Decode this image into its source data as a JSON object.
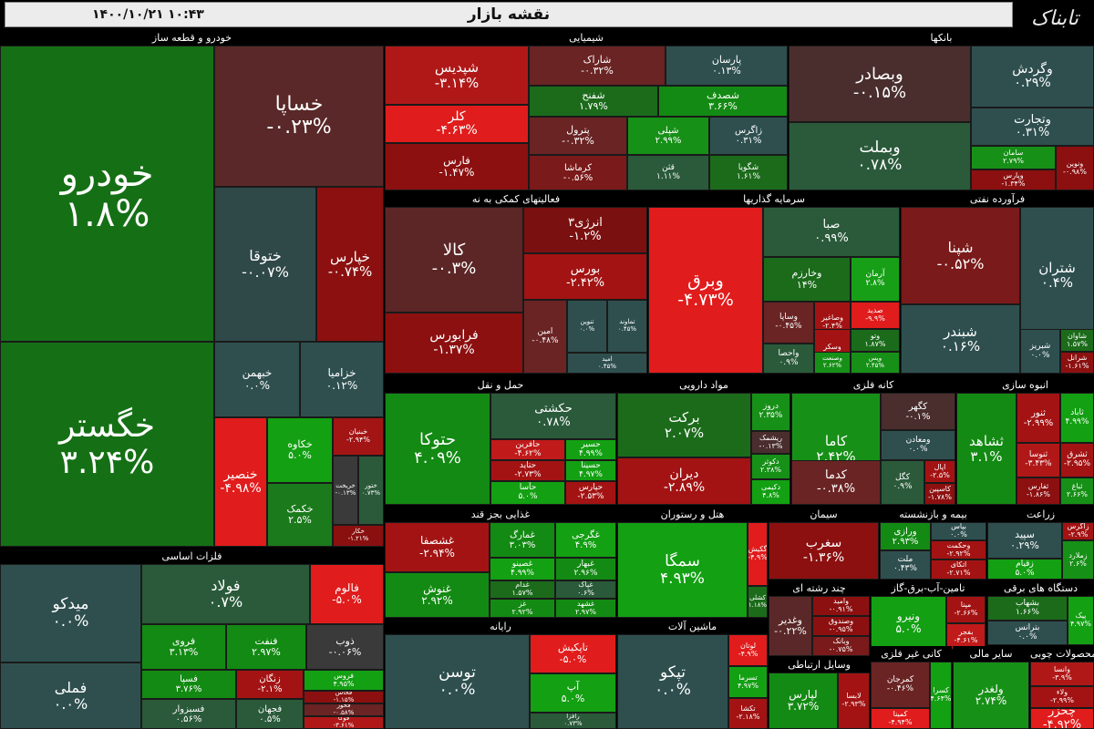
{
  "header": {
    "title": "نقشه بازار",
    "date": "۱۴۰۰/۱۰/۲۱",
    "time": "۱۰:۴۳",
    "logo": "تابناک"
  },
  "palette": {
    "dark_green": "#1b6b1b",
    "green": "#138a13",
    "bright_green": "#17a017",
    "neutral": "#2f4f4f",
    "dark_red": "#7a1010",
    "red": "#a31313",
    "bright_red": "#e11c1c",
    "maroon": "#5c2626"
  },
  "sectors": [
    {
      "title": "خودرو و قطعه ساز",
      "tiles": [
        {
          "name": "خودرو",
          "pct": "۱.۸%",
          "color": "#157015"
        },
        {
          "name": "خگستر",
          "pct": "۳.۲۴%",
          "color": "#157015"
        },
        {
          "name": "خساپا",
          "pct": "-۰.۲۳%",
          "color": "#5a2828"
        },
        {
          "name": "ختوقا",
          "pct": "-۰.۰۷%",
          "color": "#2f4848"
        },
        {
          "name": "خپارس",
          "pct": "-۰.۷۴%",
          "color": "#8c1010"
        },
        {
          "name": "خبهمن",
          "pct": "۰.۰%",
          "color": "#2f4f4f"
        },
        {
          "name": "خزامیا",
          "pct": "۰.۱۲%",
          "color": "#2f4f4f"
        },
        {
          "name": "خنصير",
          "pct": "-۴.۹۸%",
          "color": "#e11c1c"
        },
        {
          "name": "خکاوه",
          "pct": "۵.۰%",
          "color": "#13a013"
        },
        {
          "name": "خکمک",
          "pct": "۲.۵%",
          "color": "#1b7a1b"
        },
        {
          "name": "خبنیان",
          "pct": "-۲.۹۴%",
          "color": "#a31515"
        },
        {
          "name": "خریخت",
          "pct": "-۰.۱۳%",
          "color": "#3a3a3a"
        },
        {
          "name": "ختور",
          "pct": "۰.۷۳%",
          "color": "#2a5a3a"
        },
        {
          "name": "خکار",
          "pct": "-۱.۲۱%",
          "color": "#8a1010"
        }
      ]
    },
    {
      "title": "شیمیایی",
      "tiles": [
        {
          "name": "شپدیس",
          "pct": "-۳.۱۴%",
          "color": "#b01818"
        },
        {
          "name": "شاراک",
          "pct": "-۰.۳۲%",
          "color": "#6a2424"
        },
        {
          "name": "پارسان",
          "pct": "۰.۱۳%",
          "color": "#2f4f4f"
        },
        {
          "name": "شفنح",
          "pct": "۱.۷۹%",
          "color": "#1b6b1b"
        },
        {
          "name": "شصدف",
          "pct": "۳.۶۶%",
          "color": "#138a13"
        },
        {
          "name": "کلر",
          "pct": "-۴.۶۳%",
          "color": "#e11c1c"
        },
        {
          "name": "پترول",
          "pct": "-۰.۳۲%",
          "color": "#6a2424"
        },
        {
          "name": "شپلی",
          "pct": "۲.۹۹%",
          "color": "#179017"
        },
        {
          "name": "زاگرس",
          "pct": "۰.۳۱%",
          "color": "#2f4f4f"
        },
        {
          "name": "فارس",
          "pct": "-۱.۴۷%",
          "color": "#8c1010"
        },
        {
          "name": "کرماشا",
          "pct": "-۰.۵۶%",
          "color": "#7a1a1a"
        },
        {
          "name": "قثن",
          "pct": "۱.۱۱%",
          "color": "#2a5a3a"
        },
        {
          "name": "شگویا",
          "pct": "۱.۶۱%",
          "color": "#1b6b1b"
        }
      ]
    },
    {
      "title": "بانکها",
      "tiles": [
        {
          "name": "وبصادر",
          "pct": "-۰.۱۵%",
          "color": "#4a2e2e"
        },
        {
          "name": "وبملت",
          "pct": "۰.۷۸%",
          "color": "#2a5a3a"
        },
        {
          "name": "وگردش",
          "pct": "۰.۲۹%",
          "color": "#2f4f4f"
        },
        {
          "name": "وتجارت",
          "pct": "۰.۳۱%",
          "color": "#2f4f4f"
        },
        {
          "name": "سامان",
          "pct": "۲.۷۹%",
          "color": "#179017"
        },
        {
          "name": "وپارس",
          "pct": "-۱.۳۴%",
          "color": "#8c1010"
        },
        {
          "name": "ونوین",
          "pct": "-۰.۹۸%",
          "color": "#8c1010"
        }
      ]
    },
    {
      "title": "فعالیتهای کمکی به نه",
      "tiles": [
        {
          "name": "کالا",
          "pct": "-۰.۳%",
          "color": "#5c2626"
        },
        {
          "name": "انرژی۳",
          "pct": "-۱.۲%",
          "color": "#7a1010"
        },
        {
          "name": "بورس",
          "pct": "-۲.۴۲%",
          "color": "#a31313"
        },
        {
          "name": "فرابورس",
          "pct": "-۱.۳۷%",
          "color": "#8c1010"
        },
        {
          "name": "امین",
          "pct": "-۰.۴۸%",
          "color": "#6a2424"
        },
        {
          "name": "تنوین",
          "pct": "۰.۰%",
          "color": "#2f4f4f"
        },
        {
          "name": "تماوند",
          "pct": "۰.۴۵%",
          "color": "#2f4f4f"
        },
        {
          "name": "امید",
          "pct": "۰.۴۵%",
          "color": "#2f4f4f"
        }
      ]
    },
    {
      "title": "سرمایه گذاریها",
      "tiles": [
        {
          "name": "وبرق",
          "pct": "-۴.۷۳%",
          "color": "#e11c1c"
        },
        {
          "name": "صبا",
          "pct": "۰.۹۹%",
          "color": "#2a5a3a"
        },
        {
          "name": "وخارزم",
          "pct": "۱۴%",
          "color": "#1b6b1b"
        },
        {
          "name": "آرمان",
          "pct": "۲.۸%",
          "color": "#17a017"
        },
        {
          "name": "وساپا",
          "pct": "-۰.۴۵%",
          "color": "#6a2424"
        },
        {
          "name": "وصاغیر",
          "pct": "-۲.۴%",
          "color": "#a31313"
        },
        {
          "name": "صدید",
          "pct": "-۹.۹%",
          "color": "#e11c1c"
        },
        {
          "name": "واحصا",
          "pct": "۰.۹%",
          "color": "#2a5a3a"
        },
        {
          "name": "وسکر",
          "pct": "-۲.۵%",
          "color": "#a31313"
        },
        {
          "name": "وتو",
          "pct": "۱.۸۷%",
          "color": "#1b6b1b"
        },
        {
          "name": "وصنعت",
          "pct": "۲.۶۲%",
          "color": "#179017"
        },
        {
          "name": "وپس",
          "pct": "۲.۴۵%",
          "color": "#179017"
        }
      ]
    },
    {
      "title": "فرآورده نفتی",
      "tiles": [
        {
          "name": "شپنا",
          "pct": "-۰.۵۲%",
          "color": "#7a1a1a"
        },
        {
          "name": "شتران",
          "pct": "۰.۴%",
          "color": "#2f4f4f"
        },
        {
          "name": "شبندر",
          "pct": "۰.۱۶%",
          "color": "#2f4f4f"
        },
        {
          "name": "شبریز",
          "pct": "۰.۰%",
          "color": "#2f4f4f"
        },
        {
          "name": "شاوان",
          "pct": "۱.۵۷%",
          "color": "#1b6b1b"
        },
        {
          "name": "شرانل",
          "pct": "-۱.۶۱%",
          "color": "#8c1010"
        }
      ]
    },
    {
      "title": "حمل و نقل",
      "tiles": [
        {
          "name": "حتوکا",
          "pct": "۴.۰۹%",
          "color": "#138a13"
        },
        {
          "name": "حکشتی",
          "pct": "۰.۷۸%",
          "color": "#2a5a3a"
        },
        {
          "name": "حآفرین",
          "pct": "-۴.۶۲%",
          "color": "#c01a1a"
        },
        {
          "name": "حسیر",
          "pct": "۴.۹۹%",
          "color": "#13a013"
        },
        {
          "name": "حتاید",
          "pct": "-۲.۷۳%",
          "color": "#a31313"
        },
        {
          "name": "حسینا",
          "pct": "۴.۹۷%",
          "color": "#13a013"
        },
        {
          "name": "حآسا",
          "pct": "۵.۰%",
          "color": "#13a013"
        },
        {
          "name": "حپارس",
          "pct": "-۲.۵۳%",
          "color": "#a31313"
        }
      ]
    },
    {
      "title": "مواد دارویی",
      "tiles": [
        {
          "name": "برکت",
          "pct": "۲.۰۷%",
          "color": "#1b6b1b"
        },
        {
          "name": "دروز",
          "pct": "۲.۳۵%",
          "color": "#179017"
        },
        {
          "name": "ریشمک",
          "pct": "-۰.۱۳%",
          "color": "#4a2e2e"
        },
        {
          "name": "دیران",
          "pct": "-۲.۸۹%",
          "color": "#a31313"
        },
        {
          "name": "دکوثر",
          "pct": "۲.۳۸%",
          "color": "#179017"
        },
        {
          "name": "دکیمی",
          "pct": "۴.۸%",
          "color": "#13a013"
        }
      ]
    },
    {
      "title": "کانه فلزی",
      "tiles": [
        {
          "name": "کاما",
          "pct": "۲.۴۲%",
          "color": "#179017"
        },
        {
          "name": "کگهر",
          "pct": "-۰.۱%",
          "color": "#4a2e2e"
        },
        {
          "name": "ومعادن",
          "pct": "۰.۰%",
          "color": "#2f4f4f"
        },
        {
          "name": "کدما",
          "pct": "-۰.۳۸%",
          "color": "#6a2424"
        },
        {
          "name": "کگل",
          "pct": "۰.۹%",
          "color": "#2a5a3a"
        },
        {
          "name": "اپال",
          "pct": "-۲.۵%",
          "color": "#a31313"
        },
        {
          "name": "کاسپین",
          "pct": "-۱.۷۸%",
          "color": "#8c1010"
        }
      ]
    },
    {
      "title": "انبوه سازی",
      "tiles": [
        {
          "name": "ثشاهد",
          "pct": "۳.۱%",
          "color": "#138a13"
        },
        {
          "name": "ثنور",
          "pct": "-۲.۹۹%",
          "color": "#a31313"
        },
        {
          "name": "ثاباد",
          "pct": "۴.۹۹%",
          "color": "#13a013"
        },
        {
          "name": "ثنوسا",
          "pct": "-۳.۴۳%",
          "color": "#b01818"
        },
        {
          "name": "ثشرق",
          "pct": "-۲.۹۵%",
          "color": "#a31313"
        },
        {
          "name": "ثفارس",
          "pct": "-۱.۸۶%",
          "color": "#8c1010"
        },
        {
          "name": "ثباغ",
          "pct": "۲.۶۶%",
          "color": "#179017"
        }
      ]
    },
    {
      "title": "فلزات اساسی",
      "tiles": [
        {
          "name": "میدکو",
          "pct": "۰.۰%",
          "color": "#2f4f4f"
        },
        {
          "name": "فملی",
          "pct": "۰.۰%",
          "color": "#2f4f4f"
        },
        {
          "name": "فولاد",
          "pct": "۰.۷%",
          "color": "#2a5a3a"
        },
        {
          "name": "فالوم",
          "pct": "-۵.۰%",
          "color": "#e11c1c"
        },
        {
          "name": "فروی",
          "pct": "۳.۱۳%",
          "color": "#138a13"
        },
        {
          "name": "فنفت",
          "pct": "۲.۹۷%",
          "color": "#138a13"
        },
        {
          "name": "ذوب",
          "pct": "-۰.۰۶%",
          "color": "#3a3a3a"
        },
        {
          "name": "فسپا",
          "pct": "۳.۷۶%",
          "color": "#138a13"
        },
        {
          "name": "زنگان",
          "pct": "-۲.۱%",
          "color": "#a31313"
        },
        {
          "name": "فسبزوار",
          "pct": "۰.۵۶%",
          "color": "#2a5a3a"
        },
        {
          "name": "فجهان",
          "pct": "۰.۵%",
          "color": "#2a5a3a"
        },
        {
          "name": "فروس",
          "pct": "۴.۹۵%",
          "color": "#13a013"
        },
        {
          "name": "فخاس",
          "pct": "-۱.۱۵%",
          "color": "#8c1010"
        },
        {
          "name": "فخوز",
          "pct": "-۰.۵۸%",
          "color": "#6a2424"
        },
        {
          "name": "فوکا",
          "pct": "-۳.۶۱%",
          "color": "#b01818"
        }
      ]
    },
    {
      "title": "غذایی بجز قند",
      "tiles": [
        {
          "name": "غشصفا",
          "pct": "-۲.۹۴%",
          "color": "#a31313"
        },
        {
          "name": "غنوش",
          "pct": "۲.۹۲%",
          "color": "#138a13"
        },
        {
          "name": "غمارگ",
          "pct": "۳.۰۳%",
          "color": "#138a13"
        },
        {
          "name": "غگرجی",
          "pct": "۴.۹%",
          "color": "#13a013"
        },
        {
          "name": "غصینو",
          "pct": "۴.۹۹%",
          "color": "#13a013"
        },
        {
          "name": "غبهار",
          "pct": "۲.۹۶%",
          "color": "#138a13"
        },
        {
          "name": "غدام",
          "pct": "۱.۵۷%",
          "color": "#1b6b1b"
        },
        {
          "name": "غپاک",
          "pct": "۰.۶%",
          "color": "#2a5a3a"
        },
        {
          "name": "غز",
          "pct": "۲.۹۲%",
          "color": "#138a13"
        },
        {
          "name": "غشهد",
          "pct": "۲.۹۷%",
          "color": "#138a13"
        }
      ]
    },
    {
      "title": "هتل و رستوران",
      "tiles": [
        {
          "name": "سمگا",
          "pct": "۴.۹۳%",
          "color": "#13a013"
        },
        {
          "name": "گکیش",
          "pct": "-۴.۹%",
          "color": "#e11c1c"
        },
        {
          "name": "کشلی",
          "pct": "۱.۱۸%",
          "color": "#1b6b1b"
        }
      ]
    },
    {
      "title": "سیمان",
      "tiles": [
        {
          "name": "سغرب",
          "pct": "-۱.۳۶%",
          "color": "#8c1010"
        }
      ]
    },
    {
      "title": "بیمه و بازنشسته",
      "tiles": [
        {
          "name": "ورازی",
          "pct": "۲.۹۳%",
          "color": "#138a13"
        },
        {
          "name": "بپاس",
          "pct": "۰.۰%",
          "color": "#2f4f4f"
        },
        {
          "name": "وحکمت",
          "pct": "-۲.۹۲%",
          "color": "#a31313"
        },
        {
          "name": "ملت",
          "pct": "۰.۴۳%",
          "color": "#2f4f4f"
        },
        {
          "name": "اتکای",
          "pct": "-۲.۷۱%",
          "color": "#a31313"
        }
      ]
    },
    {
      "title": "زراعت",
      "tiles": [
        {
          "name": "سپید",
          "pct": "۰.۲۹%",
          "color": "#2f4f4f"
        },
        {
          "name": "زاگرس",
          "pct": "-۲.۹%",
          "color": "#a31313"
        },
        {
          "name": "زقیام",
          "pct": "۵.۰%",
          "color": "#13a013"
        },
        {
          "name": "زملارد",
          "pct": "۲.۶%",
          "color": "#179017"
        }
      ]
    },
    {
      "title": "رایانه",
      "tiles": [
        {
          "name": "توسن",
          "pct": "۰.۰%",
          "color": "#2f4f4f"
        },
        {
          "name": "تاپکیش",
          "pct": "-۵.۰%",
          "color": "#e11c1c"
        },
        {
          "name": "آپ",
          "pct": "۵.۰%",
          "color": "#13a013"
        },
        {
          "name": "رافزا",
          "pct": "۰.۷۳%",
          "color": "#2a5a3a"
        }
      ]
    },
    {
      "title": "ماشین آلات",
      "tiles": [
        {
          "name": "تپکو",
          "pct": "۰.۰%",
          "color": "#2f4f4f"
        },
        {
          "name": "لوتان",
          "pct": "-۴.۹%",
          "color": "#e11c1c"
        },
        {
          "name": "تسرما",
          "pct": "۴.۹۷%",
          "color": "#13a013"
        },
        {
          "name": "تکشا",
          "pct": "-۲.۱۸%",
          "color": "#a31313"
        }
      ]
    },
    {
      "title": "چند رشته ای",
      "tiles": [
        {
          "name": "وغدیر",
          "pct": "-۰.۲۲%",
          "color": "#5a2828"
        },
        {
          "name": "وامید",
          "pct": "-۰.۹۱%",
          "color": "#8c1010"
        },
        {
          "name": "وصندوق",
          "pct": "-۰.۹۵%",
          "color": "#8c1010"
        },
        {
          "name": "وبانک",
          "pct": "-۰.۷۵%",
          "color": "#7a1a1a"
        }
      ]
    },
    {
      "title": "تامین-آب-برق-گاز",
      "tiles": [
        {
          "name": "ونیرو",
          "pct": "۵.۰%",
          "color": "#13a013"
        },
        {
          "name": "مپنا",
          "pct": "-۲.۶۶%",
          "color": "#a31313"
        },
        {
          "name": "بفجر",
          "pct": "-۴.۶۱%",
          "color": "#c01a1a"
        }
      ]
    },
    {
      "title": "دستگاه های برقی",
      "tiles": [
        {
          "name": "بشهاب",
          "pct": "۱.۶۶%",
          "color": "#1b6b1b"
        },
        {
          "name": "بترانس",
          "pct": "۰.۰%",
          "color": "#2f4f4f"
        },
        {
          "name": "پیک",
          "pct": "۴.۹۷%",
          "color": "#13a013"
        }
      ]
    },
    {
      "title": "وسایل ارتباطی",
      "tiles": [
        {
          "name": "لپارس",
          "pct": "۳.۷۲%",
          "color": "#138a13"
        },
        {
          "name": "لابسا",
          "pct": "-۲.۹۳%",
          "color": "#a31313"
        }
      ]
    },
    {
      "title": "کانی غیر فلزی",
      "tiles": [
        {
          "name": "کمرجان",
          "pct": "-۰.۴۶%",
          "color": "#6a2424"
        },
        {
          "name": "کسرا",
          "pct": "۴.۶۴%",
          "color": "#13a013"
        },
        {
          "name": "کمینا",
          "pct": "-۴.۹۴%",
          "color": "#e11c1c"
        }
      ]
    },
    {
      "title": "سایر مالی",
      "tiles": [
        {
          "name": "ولغدر",
          "pct": "۲.۷۴%",
          "color": "#179017"
        }
      ]
    },
    {
      "title": "محصولات چوبی",
      "tiles": [
        {
          "name": "وانسا",
          "pct": "-۳.۹%",
          "color": "#b01818"
        },
        {
          "name": "ولاء",
          "pct": "-۲.۹۹%",
          "color": "#a31313"
        },
        {
          "name": "چخزر",
          "pct": "-۴.۹۲%",
          "color": "#e11c1c"
        }
      ]
    }
  ]
}
